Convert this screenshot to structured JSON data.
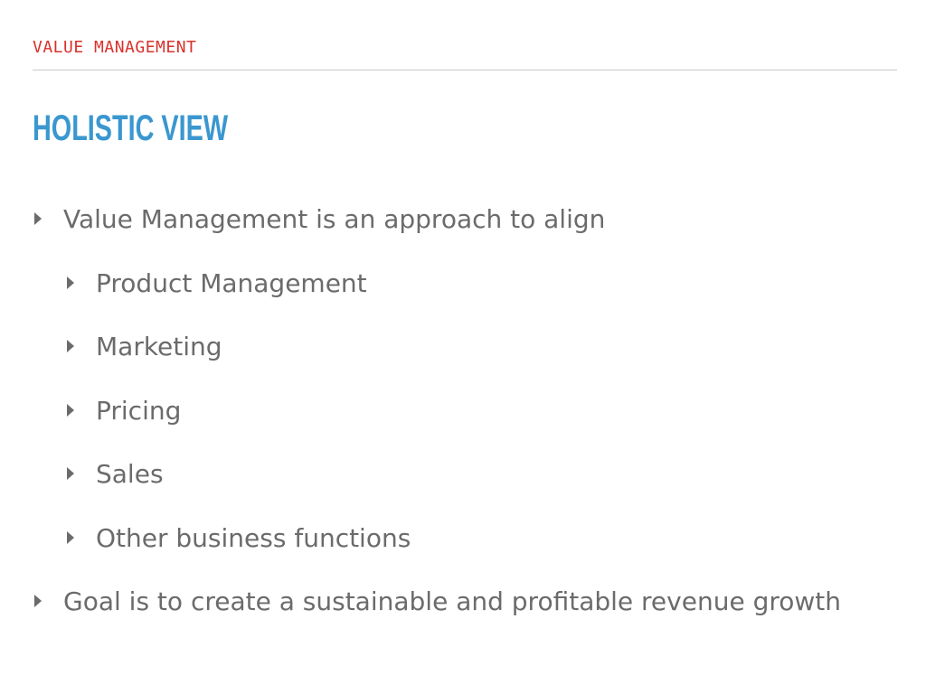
{
  "slide": {
    "section_header": "VALUE MANAGEMENT",
    "title": "HOLISTIC VIEW",
    "bullets": [
      {
        "text": "Value Management is an approach to align"
      },
      {
        "text": "Product Management"
      },
      {
        "text": "Marketing"
      },
      {
        "text": "Pricing"
      },
      {
        "text": "Sales"
      },
      {
        "text": "Other business functions"
      },
      {
        "text": "Goal is to create a sustainable and profitable revenue growth"
      }
    ]
  },
  "colors": {
    "section_header": "#d9312b",
    "title": "#3a97cf",
    "body_text": "#6b6b6b",
    "divider": "#c9c9c9"
  }
}
